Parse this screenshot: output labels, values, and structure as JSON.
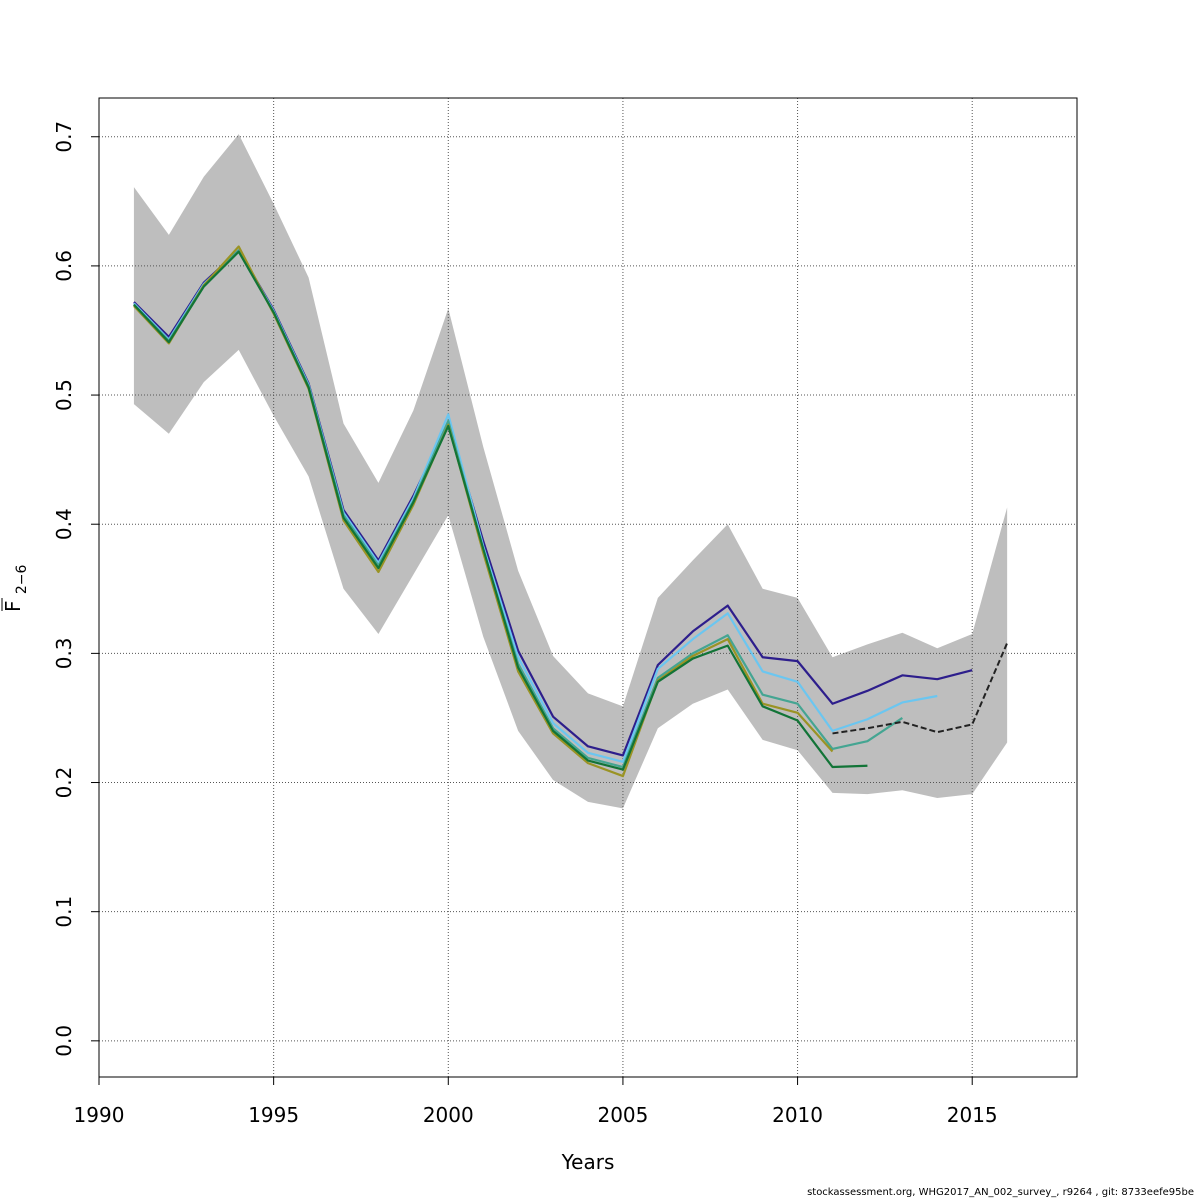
{
  "chart_data": {
    "type": "line",
    "xlabel": "Years",
    "ylabel_main": "F",
    "ylabel_sub": "2−6",
    "xlim": [
      1990,
      2018
    ],
    "ylim": [
      -0.028,
      0.73
    ],
    "x_ticks": [
      1990,
      1995,
      2000,
      2005,
      2010,
      2015
    ],
    "y_ticks": [
      0.0,
      0.1,
      0.2,
      0.3,
      0.4,
      0.5,
      0.6,
      0.7
    ],
    "y_tick_labels": [
      "0.0",
      "0.1",
      "0.2",
      "0.3",
      "0.4",
      "0.5",
      "0.6",
      "0.7"
    ],
    "grid": true,
    "confidence_band": {
      "color": "#bebebe",
      "x": [
        1991,
        1992,
        1993,
        1994,
        1995,
        1996,
        1997,
        1998,
        1999,
        2000,
        2001,
        2002,
        2003,
        2004,
        2005,
        2006,
        2007,
        2008,
        2009,
        2010,
        2011,
        2012,
        2013,
        2014,
        2015,
        2016
      ],
      "upper": [
        0.661,
        0.624,
        0.669,
        0.702,
        0.648,
        0.591,
        0.478,
        0.432,
        0.488,
        0.567,
        0.46,
        0.364,
        0.298,
        0.269,
        0.259,
        0.343,
        0.372,
        0.4,
        0.35,
        0.343,
        0.297,
        0.307,
        0.316,
        0.304,
        0.315,
        0.413
      ],
      "lower": [
        0.493,
        0.47,
        0.51,
        0.535,
        0.484,
        0.437,
        0.35,
        0.315,
        0.361,
        0.407,
        0.313,
        0.24,
        0.202,
        0.185,
        0.18,
        0.242,
        0.261,
        0.272,
        0.233,
        0.225,
        0.192,
        0.191,
        0.194,
        0.188,
        0.191,
        0.231
      ]
    },
    "series": [
      {
        "color": "#2d1e8c",
        "dashed": false,
        "x": [
          1991,
          1992,
          1993,
          1994,
          1995,
          1996,
          1997,
          1998,
          1999,
          2000,
          2001,
          2002,
          2003,
          2004,
          2005,
          2006,
          2007,
          2008,
          2009,
          2010,
          2011,
          2012,
          2013,
          2014,
          2015
        ],
        "values": [
          0.572,
          0.545,
          0.587,
          0.612,
          0.566,
          0.509,
          0.411,
          0.372,
          0.422,
          0.479,
          0.387,
          0.302,
          0.251,
          0.228,
          0.221,
          0.291,
          0.317,
          0.337,
          0.297,
          0.294,
          0.261,
          0.271,
          0.283,
          0.28,
          0.287
        ]
      },
      {
        "color": "#6bc6f0",
        "dashed": false,
        "x": [
          1991,
          1992,
          1993,
          1994,
          1995,
          1996,
          1997,
          1998,
          1999,
          2000,
          2001,
          2002,
          2003,
          2004,
          2005,
          2006,
          2007,
          2008,
          2009,
          2010,
          2011,
          2012,
          2013,
          2014
        ],
        "values": [
          0.571,
          0.543,
          0.586,
          0.612,
          0.565,
          0.508,
          0.409,
          0.37,
          0.42,
          0.485,
          0.383,
          0.297,
          0.246,
          0.223,
          0.216,
          0.288,
          0.311,
          0.331,
          0.286,
          0.278,
          0.24,
          0.249,
          0.262,
          0.267
        ]
      },
      {
        "color": "#44a592",
        "dashed": false,
        "x": [
          1991,
          1992,
          1993,
          1994,
          1995,
          1996,
          1997,
          1998,
          1999,
          2000,
          2001,
          2002,
          2003,
          2004,
          2005,
          2006,
          2007,
          2008,
          2009,
          2010,
          2011,
          2012,
          2013
        ],
        "values": [
          0.57,
          0.542,
          0.585,
          0.612,
          0.564,
          0.507,
          0.407,
          0.368,
          0.418,
          0.48,
          0.38,
          0.292,
          0.242,
          0.219,
          0.212,
          0.281,
          0.3,
          0.314,
          0.268,
          0.261,
          0.226,
          0.232,
          0.25
        ]
      },
      {
        "color": "#9a9324",
        "dashed": false,
        "x": [
          1991,
          1992,
          1993,
          1994,
          1995,
          1996,
          1997,
          1998,
          1999,
          2000,
          2001,
          2002,
          2003,
          2004,
          2005,
          2006,
          2007,
          2008,
          2009,
          2010,
          2011
        ],
        "values": [
          0.569,
          0.54,
          0.585,
          0.615,
          0.563,
          0.505,
          0.403,
          0.363,
          0.415,
          0.477,
          0.378,
          0.286,
          0.238,
          0.215,
          0.205,
          0.279,
          0.298,
          0.311,
          0.261,
          0.254,
          0.224
        ]
      },
      {
        "color": "#127437",
        "dashed": false,
        "x": [
          1991,
          1992,
          1993,
          1994,
          1995,
          1996,
          1997,
          1998,
          1999,
          2000,
          2001,
          2002,
          2003,
          2004,
          2005,
          2006,
          2007,
          2008,
          2009,
          2010,
          2011,
          2012
        ],
        "values": [
          0.57,
          0.541,
          0.584,
          0.611,
          0.564,
          0.506,
          0.405,
          0.366,
          0.417,
          0.476,
          0.381,
          0.289,
          0.24,
          0.217,
          0.21,
          0.278,
          0.296,
          0.306,
          0.259,
          0.248,
          0.212,
          0.213
        ]
      },
      {
        "color": "#222222",
        "dashed": true,
        "x": [
          2011,
          2012,
          2013,
          2014,
          2015,
          2016
        ],
        "values": [
          0.238,
          0.242,
          0.247,
          0.239,
          0.245,
          0.308
        ]
      }
    ]
  },
  "footer": {
    "text": "stockassessment.org, WHG2017_AN_002_survey_, r9264 , git: 8733eefe95be"
  }
}
